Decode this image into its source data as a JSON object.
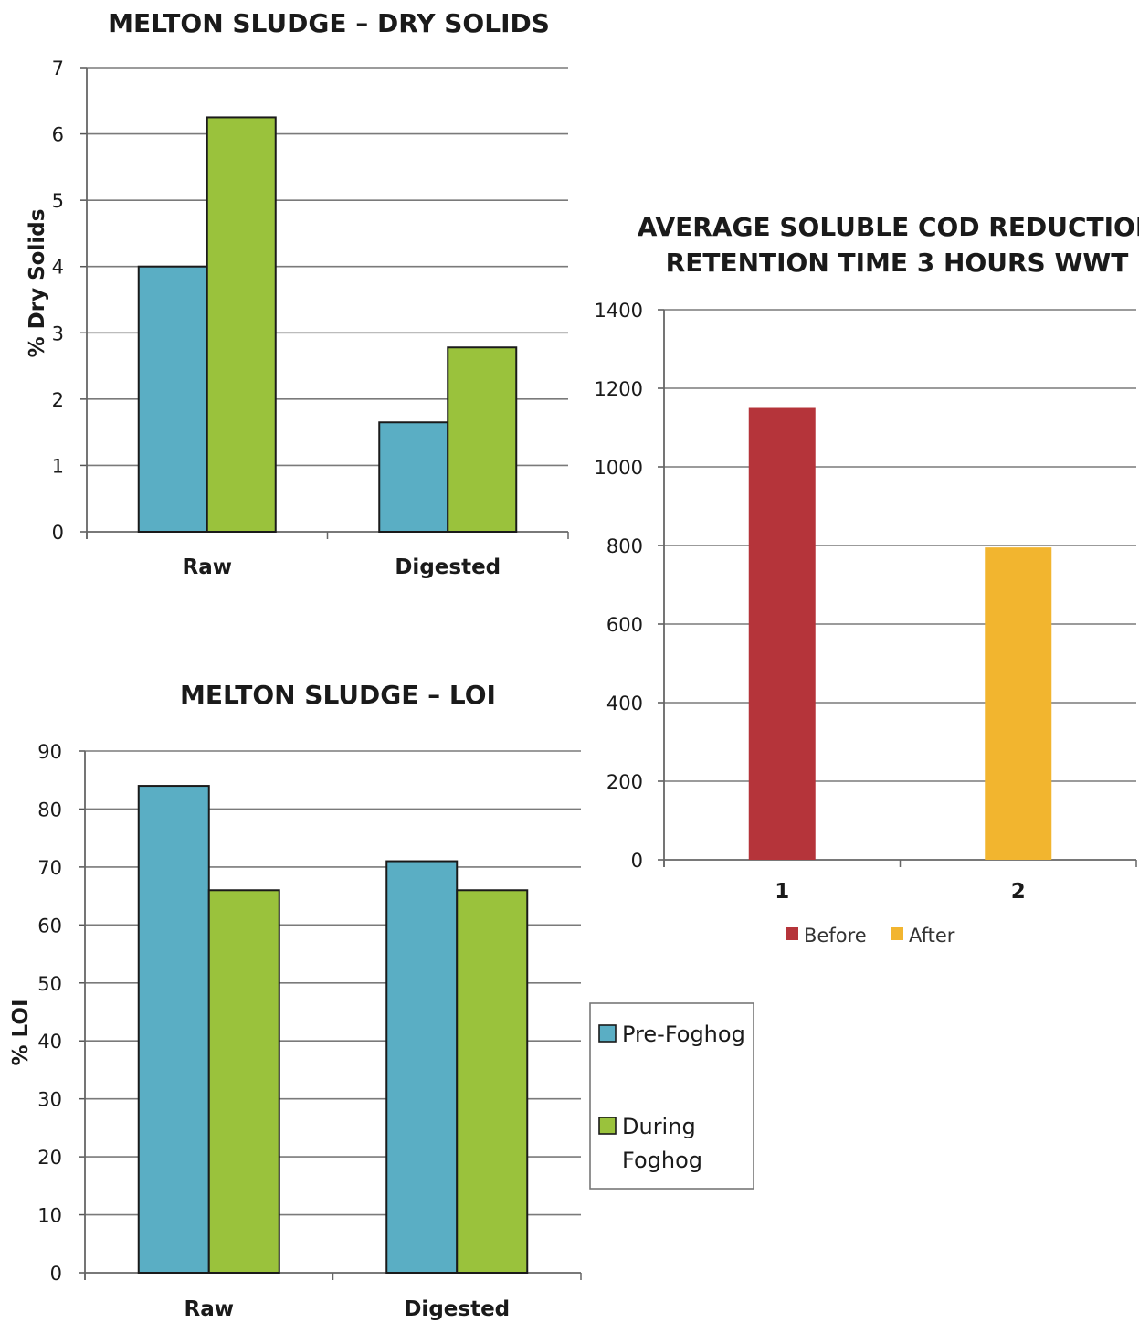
{
  "chart_data": [
    {
      "id": "dry",
      "type": "bar",
      "title": "MELTON SLUDGE – DRY SOLIDS",
      "xlabel": "",
      "ylabel": "% Dry Solids",
      "ylim": [
        0,
        7
      ],
      "yticks": [
        0,
        1,
        2,
        3,
        4,
        5,
        6,
        7
      ],
      "categories": [
        "Raw",
        "Digested"
      ],
      "grid": true,
      "series": [
        {
          "name": "Pre-Foghog",
          "color": "#5aaec4",
          "values": [
            4.0,
            1.65
          ]
        },
        {
          "name": "During Foghog",
          "color": "#9ac23c",
          "values": [
            6.25,
            2.78
          ]
        }
      ]
    },
    {
      "id": "loi",
      "type": "bar",
      "title": "MELTON SLUDGE – LOI",
      "xlabel": "",
      "ylabel": "% LOI",
      "ylim": [
        0,
        90
      ],
      "yticks": [
        0,
        10,
        20,
        30,
        40,
        50,
        60,
        70,
        80,
        90
      ],
      "categories": [
        "Raw",
        "Digested"
      ],
      "grid": true,
      "series": [
        {
          "name": "Pre-Foghog",
          "color": "#5aaec4",
          "values": [
            84,
            71
          ]
        },
        {
          "name": "During Foghog",
          "color": "#9ac23c",
          "values": [
            66,
            66
          ]
        }
      ]
    },
    {
      "id": "cod",
      "type": "bar",
      "title_lines": [
        "AVERAGE SOLUBLE COD REDUCTION",
        "RETENTION TIME 3 HOURS WWT"
      ],
      "xlabel": "",
      "ylabel": "",
      "ylim": [
        0,
        1400
      ],
      "yticks": [
        0,
        200,
        400,
        600,
        800,
        1000,
        1200,
        1400
      ],
      "categories": [
        "1",
        "2"
      ],
      "grid": true,
      "legend_position": "bottom",
      "series": [
        {
          "name": "Before",
          "color": "#b5343a",
          "values": [
            1150,
            null
          ]
        },
        {
          "name": "After",
          "color": "#f2b52f",
          "values": [
            null,
            795
          ]
        }
      ]
    }
  ],
  "shared_legend": {
    "position": "right-middle",
    "items": [
      {
        "lines": [
          "Pre-Foghog"
        ],
        "color": "#5aaec4"
      },
      {
        "lines": [
          "During",
          "Foghog"
        ],
        "color": "#9ac23c"
      }
    ]
  }
}
